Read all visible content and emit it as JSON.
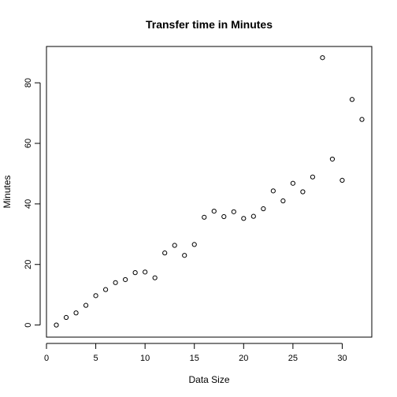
{
  "chart_data": {
    "type": "scatter",
    "title": "Transfer time in Minutes",
    "xlabel": "Data Size",
    "ylabel": "Minutes",
    "xlim": [
      0,
      33
    ],
    "ylim": [
      -4,
      92
    ],
    "x_ticks": [
      0,
      5,
      10,
      15,
      20,
      25,
      30
    ],
    "y_ticks": [
      0,
      20,
      40,
      60,
      80
    ],
    "grid": false,
    "marker": "open-circle",
    "series": [
      {
        "x": [
          1,
          2,
          3,
          4,
          5,
          6,
          7,
          8,
          9,
          10,
          11,
          12,
          13,
          14,
          15,
          16,
          17,
          18,
          19,
          20,
          21,
          22,
          23,
          24,
          25,
          26,
          27,
          28,
          29,
          30,
          31,
          32
        ],
        "y": [
          0,
          2.5,
          4,
          6.5,
          9.7,
          11.7,
          14,
          15,
          17.3,
          17.5,
          15.6,
          23.8,
          26.3,
          23,
          26.6,
          35.6,
          37.6,
          35.8,
          37.4,
          35.2,
          35.9,
          38.4,
          44.3,
          41,
          46.8,
          44,
          48.9,
          88.3,
          54.8,
          47.8,
          74.5,
          67.9
        ]
      }
    ]
  }
}
